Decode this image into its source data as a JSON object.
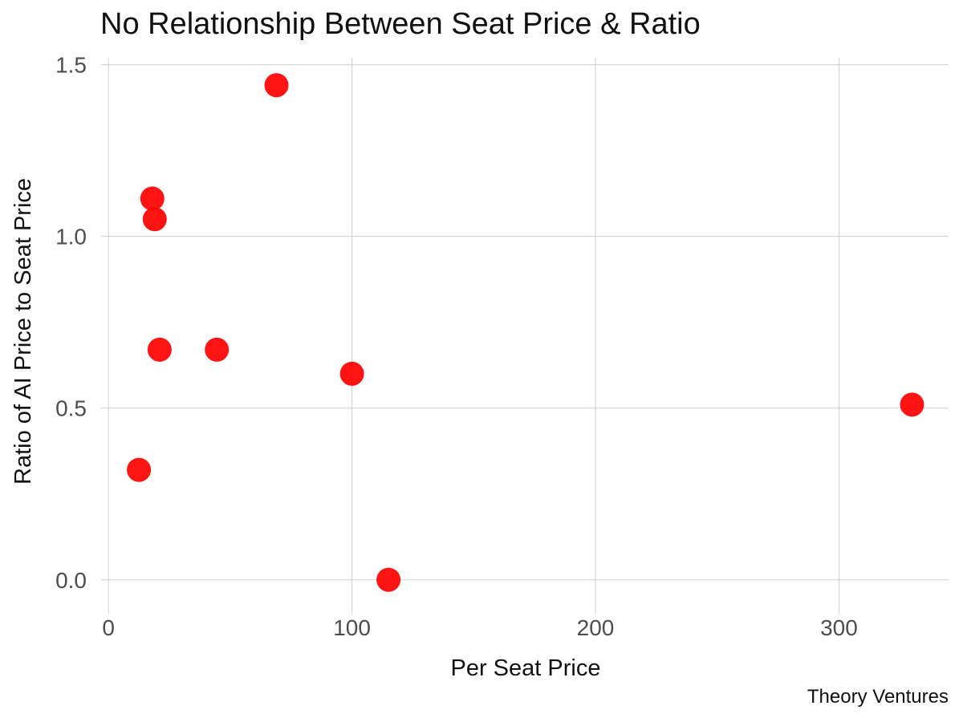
{
  "chart_data": {
    "type": "scatter",
    "title": "No Relationship Between Seat Price & Ratio",
    "xlabel": "Per Seat Price",
    "ylabel": "Ratio of AI Price to Seat Price",
    "caption": "Theory Ventures",
    "xlim": [
      -5,
      345
    ],
    "ylim": [
      -0.08,
      1.52
    ],
    "xticks": [
      0,
      100,
      200,
      300
    ],
    "xtick_labels": [
      "0",
      "100",
      "200",
      "300"
    ],
    "yticks": [
      0.0,
      0.5,
      1.0,
      1.5
    ],
    "ytick_labels": [
      "0.0",
      "0.5",
      "1.0",
      "1.5"
    ],
    "grid": true,
    "point_color": "#ff0000",
    "points": [
      {
        "x": 69,
        "y": 1.44
      },
      {
        "x": 18,
        "y": 1.11
      },
      {
        "x": 19,
        "y": 1.05
      },
      {
        "x": 21,
        "y": 0.67
      },
      {
        "x": 44.5,
        "y": 0.67
      },
      {
        "x": 100,
        "y": 0.6
      },
      {
        "x": 330,
        "y": 0.51
      },
      {
        "x": 12.5,
        "y": 0.32
      },
      {
        "x": 115,
        "y": 0.0
      }
    ]
  }
}
